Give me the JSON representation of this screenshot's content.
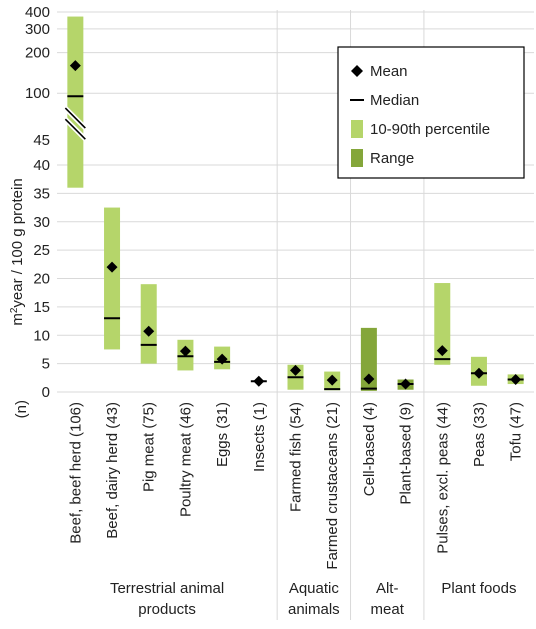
{
  "chart_data": {
    "type": "range_bar",
    "ylabel": "m²year / 100 g protein",
    "ylabel_parts": {
      "m": "m",
      "sup": "2",
      "rest": "year / 100 g protein"
    },
    "n_label": "(n)",
    "scale": {
      "lower": {
        "min": 0,
        "max": 40,
        "ticks": [
          "0",
          "5",
          "10",
          "15",
          "20",
          "25",
          "30",
          "35",
          "40"
        ]
      },
      "upper": {
        "min": 45,
        "max": 400,
        "log": true,
        "ticks": [
          "45",
          "100",
          "200",
          "300",
          "400"
        ]
      }
    },
    "legend": {
      "position": "top-right",
      "items": [
        {
          "label": "Mean",
          "kind": "diamond"
        },
        {
          "label": "Median",
          "kind": "line"
        },
        {
          "label": "10-90th percentile",
          "kind": "light"
        },
        {
          "label": "Range",
          "kind": "dark"
        }
      ]
    },
    "colors": {
      "percentile": "#b5d56a",
      "range": "#84a63a",
      "marker": "#000000",
      "grid": "#d9d9d9"
    },
    "categories": [
      {
        "label": "Beef, beef herd (106)",
        "low": 36,
        "high": 370,
        "mean": 160,
        "median": 95,
        "band": "percentile"
      },
      {
        "label": "Beef, dairy herd (43)",
        "low": 7.5,
        "high": 32.5,
        "mean": 22,
        "median": 13,
        "band": "percentile"
      },
      {
        "label": "Pig meat (75)",
        "low": 5,
        "high": 19,
        "mean": 10.7,
        "median": 8.3,
        "band": "percentile"
      },
      {
        "label": "Poultry meat (46)",
        "low": 3.8,
        "high": 9.2,
        "mean": 7.2,
        "median": 6.3,
        "band": "percentile"
      },
      {
        "label": "Eggs (31)",
        "low": 4,
        "high": 8,
        "mean": 5.8,
        "median": 5.3,
        "band": "percentile"
      },
      {
        "label": "Insects (1)",
        "low": null,
        "high": null,
        "mean": 1.9,
        "median": 1.9,
        "band": "none"
      },
      {
        "label": "Farmed fish (54)",
        "low": 0.4,
        "high": 4.8,
        "mean": 3.8,
        "median": 2.6,
        "band": "percentile"
      },
      {
        "label": "Farmed crustaceans (21)",
        "low": 0.3,
        "high": 3.6,
        "mean": 2.1,
        "median": 0.5,
        "band": "percentile"
      },
      {
        "label": "Cell-based (4)",
        "low": 0.2,
        "high": 11.3,
        "mean": 2.3,
        "median": 0.6,
        "band": "range"
      },
      {
        "label": "Plant-based (9)",
        "low": 0.4,
        "high": 2.2,
        "mean": 1.4,
        "median": 1.4,
        "band": "range"
      },
      {
        "label": "Pulses, excl. peas (44)",
        "low": 4.8,
        "high": 19.2,
        "mean": 7.3,
        "median": 5.8,
        "band": "percentile"
      },
      {
        "label": "Peas (33)",
        "low": 1.1,
        "high": 6.2,
        "mean": 3.3,
        "median": 3.3,
        "band": "percentile"
      },
      {
        "label": "Tofu (47)",
        "low": 1.4,
        "high": 3.1,
        "mean": 2.2,
        "median": 2.2,
        "band": "percentile"
      }
    ],
    "groups": [
      {
        "label_lines": [
          "Terrestrial animal",
          "products"
        ],
        "count": 6
      },
      {
        "label_lines": [
          "Aquatic",
          "animals"
        ],
        "count": 2
      },
      {
        "label_lines": [
          "Alt-",
          "meat"
        ],
        "count": 2
      },
      {
        "label_lines": [
          "Plant foods"
        ],
        "count": 3
      }
    ]
  }
}
